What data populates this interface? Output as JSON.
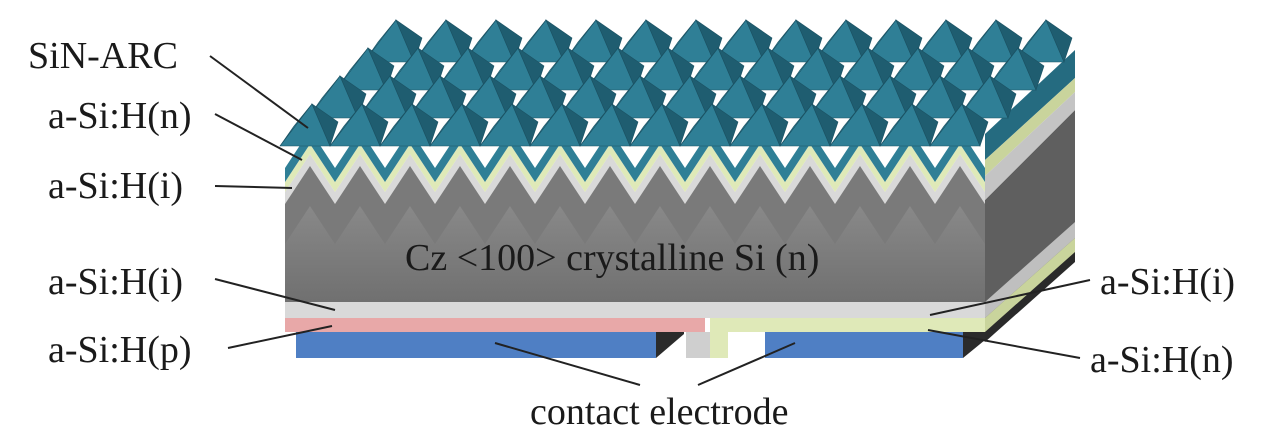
{
  "labels": {
    "sin_arc": "SiN-ARC",
    "asih_n_top": "a-Si:H(n)",
    "asih_i_top": "a-Si:H(i)",
    "bulk": "Cz <100> crystalline Si (n)",
    "asih_i_bottom_left": "a-Si:H(i)",
    "asih_p": "a-Si:H(p)",
    "asih_i_bottom_right": "a-Si:H(i)",
    "asih_n_bottom_right": "a-Si:H(n)",
    "contact": "contact electrode"
  },
  "colors": {
    "arc_teal": "#2f7f96",
    "arc_dark": "#1f5d70",
    "n_layer": "#dfe9b8",
    "i_layer": "#d9d9d9",
    "bulk_front": "#7a7a7a",
    "bulk_side": "#666666",
    "p_layer": "#e8a8a8",
    "electrode": "#4f7fc4"
  }
}
